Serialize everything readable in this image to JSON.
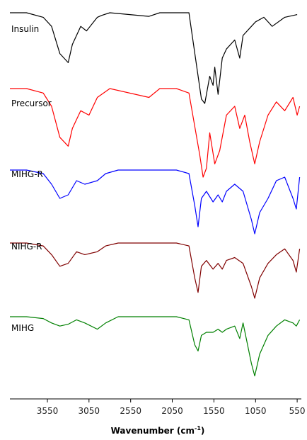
{
  "chart_data": {
    "type": "line",
    "xlabel": "Wavenumber (cm",
    "xlabel_sup": "-1",
    "xlabel_close": ")",
    "xlim": [
      4000,
      500
    ],
    "x_reversed": true,
    "xticks": [
      3550,
      3050,
      2550,
      2050,
      1550,
      1050,
      550
    ],
    "xtick_labels": [
      "3550",
      "3050",
      "2550",
      "2050",
      "1550",
      "1050",
      "550"
    ],
    "grid": false,
    "legend": "none (series labelled inline, left side)",
    "series": [
      {
        "name": "Insulin",
        "color": "#000000",
        "label_pos": "left",
        "points": [
          [
            4000,
            0
          ],
          [
            3800,
            0
          ],
          [
            3600,
            0.05
          ],
          [
            3500,
            0.15
          ],
          [
            3400,
            0.45
          ],
          [
            3300,
            0.55
          ],
          [
            3250,
            0.35
          ],
          [
            3150,
            0.15
          ],
          [
            3080,
            0.2
          ],
          [
            2950,
            0.05
          ],
          [
            2900,
            0.03
          ],
          [
            2800,
            0
          ],
          [
            2330,
            0.04
          ],
          [
            2200,
            0
          ],
          [
            2000,
            0
          ],
          [
            1850,
            0
          ],
          [
            1700,
            0.95
          ],
          [
            1660,
            1
          ],
          [
            1600,
            0.7
          ],
          [
            1560,
            0.8
          ],
          [
            1540,
            0.6
          ],
          [
            1500,
            0.9
          ],
          [
            1450,
            0.5
          ],
          [
            1400,
            0.4
          ],
          [
            1300,
            0.3
          ],
          [
            1240,
            0.5
          ],
          [
            1200,
            0.25
          ],
          [
            1100,
            0.15
          ],
          [
            1050,
            0.1
          ],
          [
            950,
            0.05
          ],
          [
            850,
            0.15
          ],
          [
            700,
            0.05
          ],
          [
            550,
            0.02
          ]
        ]
      },
      {
        "name": "Precursor",
        "color": "#ff0000",
        "label_pos": "left",
        "points": [
          [
            4000,
            0
          ],
          [
            3800,
            0
          ],
          [
            3600,
            0.05
          ],
          [
            3500,
            0.2
          ],
          [
            3400,
            0.55
          ],
          [
            3300,
            0.65
          ],
          [
            3250,
            0.45
          ],
          [
            3150,
            0.25
          ],
          [
            3050,
            0.3
          ],
          [
            2950,
            0.1
          ],
          [
            2800,
            0
          ],
          [
            2330,
            0.1
          ],
          [
            2200,
            0
          ],
          [
            2000,
            0
          ],
          [
            1850,
            0.05
          ],
          [
            1720,
            0.75
          ],
          [
            1680,
            1
          ],
          [
            1640,
            0.9
          ],
          [
            1600,
            0.5
          ],
          [
            1540,
            0.85
          ],
          [
            1480,
            0.7
          ],
          [
            1400,
            0.3
          ],
          [
            1300,
            0.2
          ],
          [
            1240,
            0.45
          ],
          [
            1180,
            0.3
          ],
          [
            1120,
            0.6
          ],
          [
            1060,
            0.85
          ],
          [
            1000,
            0.6
          ],
          [
            900,
            0.3
          ],
          [
            800,
            0.15
          ],
          [
            700,
            0.25
          ],
          [
            600,
            0.1
          ],
          [
            550,
            0.3
          ],
          [
            520,
            0.2
          ]
        ]
      },
      {
        "name": "MIHG-R",
        "color": "#0000ff",
        "label_pos": "left",
        "points": [
          [
            4000,
            0
          ],
          [
            3800,
            0
          ],
          [
            3600,
            0.05
          ],
          [
            3500,
            0.2
          ],
          [
            3400,
            0.4
          ],
          [
            3300,
            0.35
          ],
          [
            3200,
            0.15
          ],
          [
            3100,
            0.2
          ],
          [
            2950,
            0.15
          ],
          [
            2850,
            0.05
          ],
          [
            2700,
            0
          ],
          [
            2200,
            0
          ],
          [
            2000,
            0
          ],
          [
            1850,
            0.05
          ],
          [
            1780,
            0.5
          ],
          [
            1740,
            0.8
          ],
          [
            1700,
            0.4
          ],
          [
            1640,
            0.3
          ],
          [
            1560,
            0.45
          ],
          [
            1500,
            0.35
          ],
          [
            1450,
            0.45
          ],
          [
            1400,
            0.3
          ],
          [
            1300,
            0.2
          ],
          [
            1200,
            0.3
          ],
          [
            1100,
            0.7
          ],
          [
            1060,
            0.9
          ],
          [
            1000,
            0.6
          ],
          [
            900,
            0.4
          ],
          [
            800,
            0.15
          ],
          [
            700,
            0.1
          ],
          [
            600,
            0.4
          ],
          [
            560,
            0.55
          ],
          [
            520,
            0.1
          ]
        ]
      },
      {
        "name": "NIHG-R",
        "color": "#800000",
        "label_pos": "left",
        "points": [
          [
            4000,
            0
          ],
          [
            3800,
            0
          ],
          [
            3600,
            0.05
          ],
          [
            3500,
            0.2
          ],
          [
            3400,
            0.4
          ],
          [
            3300,
            0.35
          ],
          [
            3200,
            0.15
          ],
          [
            3100,
            0.2
          ],
          [
            2950,
            0.15
          ],
          [
            2850,
            0.05
          ],
          [
            2700,
            0
          ],
          [
            2200,
            0
          ],
          [
            2000,
            0
          ],
          [
            1850,
            0.05
          ],
          [
            1780,
            0.6
          ],
          [
            1740,
            0.85
          ],
          [
            1700,
            0.4
          ],
          [
            1640,
            0.3
          ],
          [
            1560,
            0.45
          ],
          [
            1500,
            0.35
          ],
          [
            1450,
            0.45
          ],
          [
            1400,
            0.3
          ],
          [
            1300,
            0.25
          ],
          [
            1200,
            0.35
          ],
          [
            1100,
            0.75
          ],
          [
            1060,
            0.95
          ],
          [
            1000,
            0.6
          ],
          [
            900,
            0.35
          ],
          [
            800,
            0.2
          ],
          [
            700,
            0.1
          ],
          [
            600,
            0.3
          ],
          [
            560,
            0.5
          ],
          [
            520,
            0.1
          ]
        ]
      },
      {
        "name": "MIHG",
        "color": "#008000",
        "label_pos": "left",
        "points": [
          [
            4000,
            0
          ],
          [
            3800,
            0
          ],
          [
            3600,
            0.03
          ],
          [
            3500,
            0.1
          ],
          [
            3400,
            0.15
          ],
          [
            3300,
            0.12
          ],
          [
            3200,
            0.05
          ],
          [
            3100,
            0.1
          ],
          [
            2950,
            0.2
          ],
          [
            2850,
            0.1
          ],
          [
            2700,
            0
          ],
          [
            2200,
            0
          ],
          [
            2000,
            0
          ],
          [
            1850,
            0.05
          ],
          [
            1780,
            0.45
          ],
          [
            1740,
            0.55
          ],
          [
            1700,
            0.3
          ],
          [
            1640,
            0.25
          ],
          [
            1560,
            0.25
          ],
          [
            1500,
            0.2
          ],
          [
            1450,
            0.25
          ],
          [
            1400,
            0.2
          ],
          [
            1300,
            0.15
          ],
          [
            1240,
            0.35
          ],
          [
            1200,
            0.1
          ],
          [
            1100,
            0.75
          ],
          [
            1060,
            0.95
          ],
          [
            1000,
            0.6
          ],
          [
            900,
            0.3
          ],
          [
            800,
            0.15
          ],
          [
            700,
            0.05
          ],
          [
            600,
            0.1
          ],
          [
            560,
            0.15
          ],
          [
            520,
            0.05
          ]
        ]
      }
    ]
  }
}
